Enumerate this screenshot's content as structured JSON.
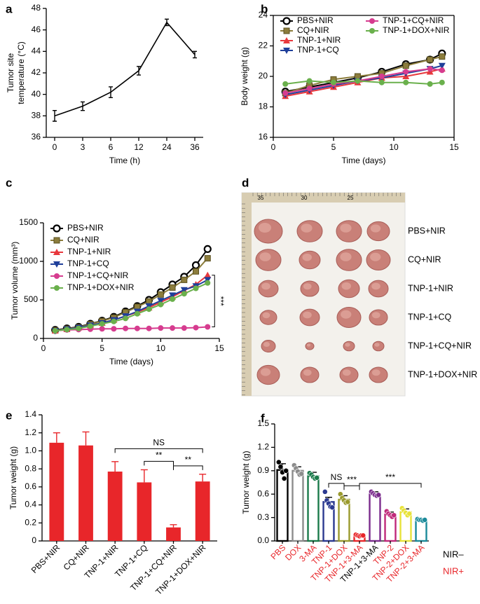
{
  "chart_data": [
    {
      "panel": "a",
      "type": "line",
      "categories": [
        "0",
        "3",
        "6",
        "12",
        "24",
        "36"
      ],
      "values": [
        38.0,
        38.9,
        40.2,
        42.2,
        46.7,
        43.7
      ],
      "errors": [
        0.5,
        0.4,
        0.5,
        0.4,
        0.3,
        0.3
      ],
      "color": "#000000",
      "ylim": [
        36,
        48
      ],
      "yticks": [
        36,
        38,
        40,
        42,
        44,
        46,
        48
      ],
      "xlabel": "Time (h)",
      "ylabel": [
        "Tumor site",
        "temperature (°C)"
      ]
    },
    {
      "panel": "b",
      "type": "line",
      "x": [
        1,
        3,
        5,
        7,
        9,
        11,
        13,
        14
      ],
      "xlim": [
        0,
        15
      ],
      "xticks": [
        0,
        5,
        10,
        15
      ],
      "ylim": [
        16,
        24
      ],
      "yticks": [
        16,
        18,
        20,
        22,
        24
      ],
      "frame": "box",
      "legend": "upper left",
      "xlabel": "Time (days)",
      "ylabel": "Body weight (g)",
      "series": [
        {
          "name": "PBS+NIR",
          "color": "#000000",
          "marker": "open-circle",
          "values": [
            19.0,
            19.3,
            19.6,
            19.9,
            20.3,
            20.8,
            21.1,
            21.5
          ]
        },
        {
          "name": "CQ+NIR",
          "color": "#8c7d3c",
          "marker": "square",
          "values": [
            18.9,
            19.4,
            19.8,
            20.0,
            20.2,
            20.7,
            21.1,
            21.3
          ]
        },
        {
          "name": "TNP-1+NIR",
          "color": "#e8383d",
          "marker": "triangle",
          "values": [
            18.7,
            19.0,
            19.3,
            19.6,
            19.9,
            20.0,
            20.3,
            20.5
          ]
        },
        {
          "name": "TNP-1+CQ",
          "color": "#1f3f9a",
          "marker": "triangle-down",
          "values": [
            18.8,
            19.1,
            19.4,
            19.7,
            19.9,
            20.2,
            20.5,
            20.7
          ]
        },
        {
          "name": "TNP-1+CQ+NIR",
          "color": "#d63c8f",
          "marker": "circle",
          "values": [
            18.9,
            19.2,
            19.5,
            19.7,
            20.0,
            20.3,
            20.5,
            20.4
          ]
        },
        {
          "name": "TNP-1+DOX+NIR",
          "color": "#6ab04c",
          "marker": "circle",
          "values": [
            19.5,
            19.7,
            19.6,
            19.7,
            19.6,
            19.6,
            19.5,
            19.6
          ]
        }
      ]
    },
    {
      "panel": "c",
      "type": "line",
      "x": [
        1,
        2,
        3,
        4,
        5,
        6,
        7,
        8,
        9,
        10,
        11,
        12,
        13,
        14
      ],
      "xlim": [
        0,
        15
      ],
      "xticks": [
        0,
        5,
        10,
        15
      ],
      "ylim": [
        0,
        1500
      ],
      "yticks": [
        0,
        500,
        1000,
        1500
      ],
      "legend": "upper left",
      "xlabel": "Time (days)",
      "ylabel": "Tumor volume (mm³)",
      "series": [
        {
          "name": "PBS+NIR",
          "color": "#000000",
          "marker": "open-circle",
          "values": [
            110,
            130,
            150,
            190,
            230,
            280,
            350,
            420,
            500,
            600,
            700,
            800,
            950,
            1160
          ]
        },
        {
          "name": "CQ+NIR",
          "color": "#8c7d3c",
          "marker": "square",
          "values": [
            105,
            125,
            145,
            185,
            225,
            270,
            340,
            410,
            480,
            570,
            660,
            760,
            870,
            1040
          ]
        },
        {
          "name": "TNP-1+NIR",
          "color": "#e8383d",
          "marker": "triangle",
          "values": [
            100,
            120,
            140,
            170,
            200,
            240,
            290,
            340,
            400,
            470,
            540,
            620,
            700,
            820
          ]
        },
        {
          "name": "TNP-1+CQ",
          "color": "#1f3f9a",
          "marker": "triangle-down",
          "values": [
            100,
            120,
            140,
            170,
            200,
            240,
            290,
            350,
            420,
            490,
            560,
            630,
            680,
            760
          ]
        },
        {
          "name": "TNP-1+CQ+NIR",
          "color": "#d63c8f",
          "marker": "circle",
          "values": [
            100,
            110,
            115,
            120,
            125,
            125,
            130,
            130,
            130,
            135,
            135,
            135,
            140,
            150
          ]
        },
        {
          "name": "TNP-1+DOX+NIR",
          "color": "#6ab04c",
          "marker": "circle",
          "values": [
            100,
            115,
            130,
            160,
            190,
            220,
            260,
            320,
            380,
            440,
            510,
            580,
            650,
            720
          ]
        }
      ],
      "bracket": {
        "text": "***",
        "series_from": 2,
        "series_to": 4
      }
    },
    {
      "panel": "d",
      "type": "image",
      "ruler_labels": [
        "35",
        "30",
        "25"
      ],
      "image_labels": [
        "PBS+NIR",
        "CQ+NIR",
        "TNP-1+NIR",
        "TNP-1+CQ",
        "TNP-1+CQ+NIR",
        "TNP-1+DOX+NIR"
      ]
    },
    {
      "panel": "e",
      "type": "bar",
      "categories": [
        "PBS+NIR",
        "CQ+NIR",
        "TNP-1+NIR",
        "TNP-1+CQ",
        "TNP-1+CQ+NIR",
        "TNP-1+DOX+NIR"
      ],
      "values": [
        1.09,
        1.06,
        0.77,
        0.65,
        0.15,
        0.66
      ],
      "errors": [
        0.11,
        0.15,
        0.11,
        0.14,
        0.03,
        0.08
      ],
      "color": "#e8262a",
      "ylim": [
        0,
        1.4
      ],
      "yticks": [
        0,
        0.2,
        0.4,
        0.6,
        0.8,
        {
          "value": 1.0,
          "label": "1.0"
        },
        1.2,
        1.4
      ],
      "ylabel": "Tumor weight (g)",
      "annotations": [
        {
          "text": "NS",
          "from": 2,
          "to": 5
        },
        {
          "text": "**",
          "from": 3,
          "to": 4
        },
        {
          "text": "**",
          "from": 4,
          "to": 5
        }
      ]
    },
    {
      "panel": "f",
      "type": "dotbar",
      "categories": [
        "PBS",
        "DOX",
        "3-MA",
        "TNP-1",
        "TNP-1+DOX",
        "TNP-1+3-MA",
        "TNP-1+3-MA",
        "TNP-2",
        "TNP-2+DOX",
        "TNP-2+3-MA"
      ],
      "values": [
        0.91,
        0.9,
        0.83,
        0.5,
        0.53,
        0.07,
        0.6,
        0.34,
        0.37,
        0.27
      ],
      "errors": [
        0.08,
        0.05,
        0.05,
        0.06,
        0.05,
        0.01,
        0.03,
        0.03,
        0.04,
        0.01
      ],
      "points": [
        [
          1.01,
          0.95,
          0.88,
          0.8,
          0.9
        ],
        [
          0.97,
          0.93,
          0.89,
          0.85,
          0.86
        ],
        [
          0.87,
          0.85,
          0.82,
          0.8,
          0.81
        ],
        [
          0.63,
          0.52,
          0.48,
          0.44,
          0.43
        ],
        [
          0.6,
          0.55,
          0.52,
          0.49,
          0.5
        ],
        [
          0.08,
          0.07,
          0.06,
          0.07,
          0.07
        ],
        [
          0.63,
          0.61,
          0.59,
          0.58,
          0.59
        ],
        [
          0.38,
          0.35,
          0.33,
          0.31,
          0.33
        ],
        [
          0.42,
          0.39,
          0.36,
          0.33,
          0.35
        ],
        [
          0.28,
          0.27,
          0.27,
          0.26,
          0.27
        ]
      ],
      "colors": [
        "#000000",
        "#8c8c8c",
        "#1a7a4a",
        "#2b3990",
        "#9a9a2e",
        "#e8262a",
        "#7a2b8c",
        "#c0287a",
        "#e8e23a",
        "#1a8a9a"
      ],
      "category_groups": [
        1,
        1,
        1,
        1,
        1,
        1,
        0,
        1,
        1,
        1
      ],
      "legend": [
        {
          "label": "NIR–",
          "color": "#000000"
        },
        {
          "label": "NIR+",
          "color": "#e8262a"
        }
      ],
      "ylim": [
        0,
        1.5
      ],
      "yticks": [
        {
          "value": 0,
          "label": "0.0"
        },
        0.3,
        0.6,
        0.9,
        1.2,
        1.5
      ],
      "ylabel": "Tumor weight (g)",
      "annotations": [
        {
          "text": "NS",
          "from": 3,
          "to": 4
        },
        {
          "text": "***",
          "from": 4,
          "to": 5
        },
        {
          "text": "***",
          "from": 5,
          "to": 9
        }
      ]
    }
  ]
}
